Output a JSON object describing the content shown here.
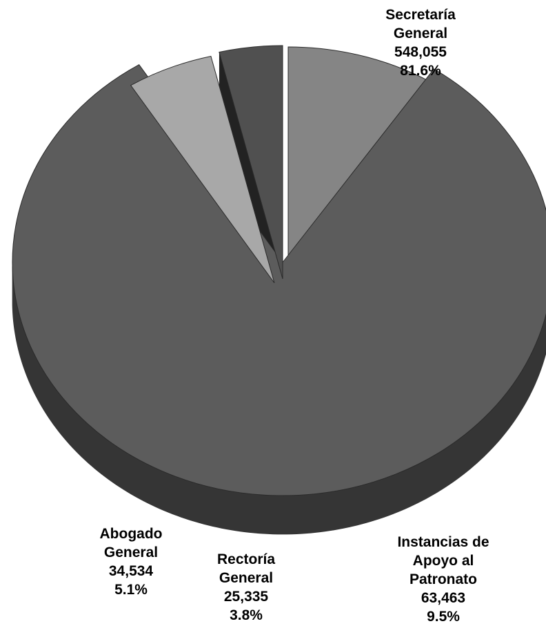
{
  "chart_data": {
    "type": "pie",
    "style": "3d-exploded",
    "start_angle_deg": 90,
    "direction": "clockwise",
    "slices": [
      {
        "name_lines": [
          "Instancias de",
          "Apoyo al",
          "Patronato"
        ],
        "value": 63463,
        "value_label": "63,463",
        "percent_label": "9.5%",
        "color": "#858585",
        "side_color": "#4d4d4d"
      },
      {
        "name_lines": [
          "Secretaría",
          "General"
        ],
        "value": 548055,
        "value_label": "548,055",
        "percent_label": "81.6%",
        "color": "#5c5c5c",
        "side_color": "#353535"
      },
      {
        "name_lines": [
          "Abogado",
          "General"
        ],
        "value": 34534,
        "value_label": "34,534",
        "percent_label": "5.1%",
        "color": "#a8a8a8",
        "side_color": "#6a6a6a"
      },
      {
        "name_lines": [
          "Rectoría",
          "General"
        ],
        "value": 25335,
        "value_label": "25,335",
        "percent_label": "3.8%",
        "color": "#505050",
        "side_color": "#222222"
      }
    ]
  }
}
